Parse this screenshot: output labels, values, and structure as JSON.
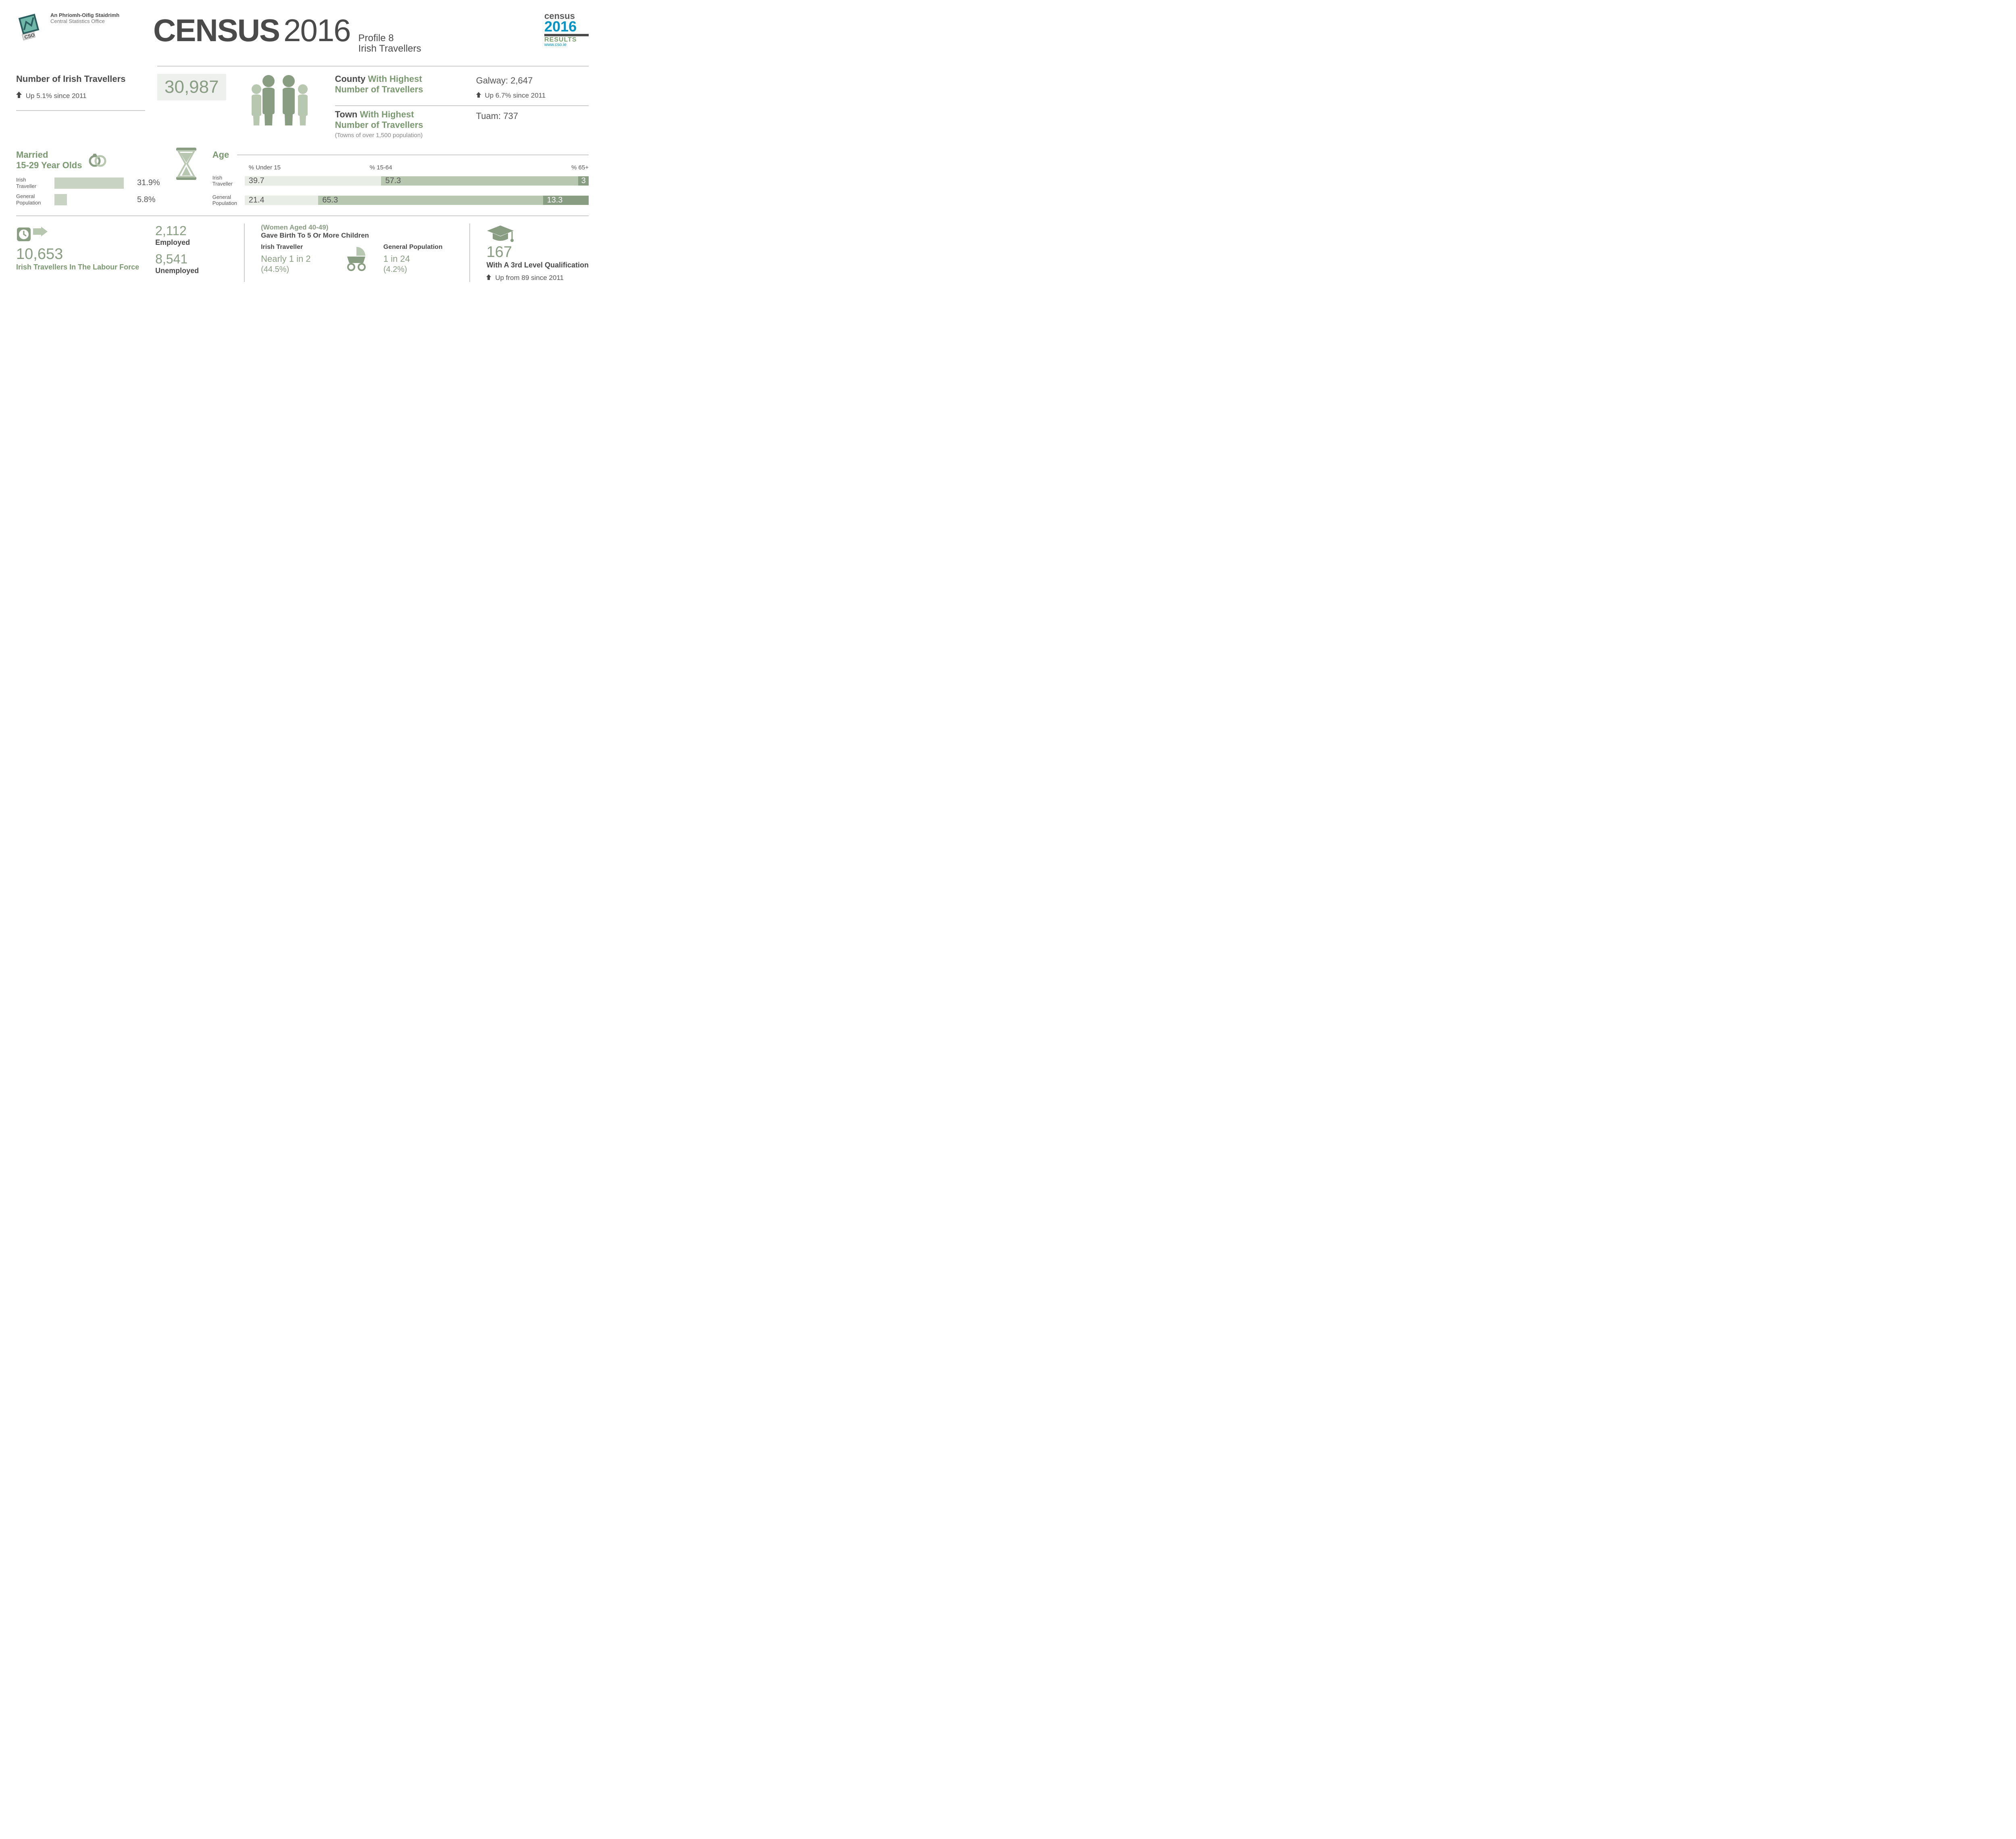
{
  "org": {
    "irish": "An Phríomh-Oifig Staidrimh",
    "english": "Central Statistics Office"
  },
  "title": {
    "word": "CENSUS",
    "year": "2016",
    "profile_line1": "Profile 8",
    "profile_line2": "Irish Travellers"
  },
  "badge": {
    "c": "census",
    "y": "2016",
    "r": "RESULTS",
    "u": "www.cso.ie"
  },
  "travellers": {
    "label": "Number of Irish Travellers",
    "value": "30,987",
    "meta": "Up 5.1% since 2011"
  },
  "county": {
    "label1": "County",
    "label2": "With Highest",
    "label3": "Number of  Travellers",
    "value": "Galway: 2,647",
    "meta": "Up 6.7% since 2011"
  },
  "town": {
    "label1": "Town",
    "label2": "With Highest",
    "label3": "Number of Travellers",
    "value": "Tuam: 737",
    "note": "(Towns of over 1,500 population)"
  },
  "married": {
    "title": "Married",
    "sub": "15-29 Year Olds",
    "rows": [
      {
        "label": "Irish Traveller",
        "val": "31.9%",
        "pct": 31.9
      },
      {
        "label": "General Population",
        "val": "5.8%",
        "pct": 5.8
      }
    ]
  },
  "age": {
    "title": "Age",
    "headers": [
      "% Under 15",
      "% 15-64",
      "% 65+"
    ],
    "rows": [
      {
        "label": "Irish Traveller",
        "segs": [
          {
            "v": "39.7",
            "w": 39.7
          },
          {
            "v": "57.3",
            "w": 57.3
          },
          {
            "v": "3",
            "w": 3
          }
        ]
      },
      {
        "label": "General Population",
        "segs": [
          {
            "v": "21.4",
            "w": 21.4
          },
          {
            "v": "65.3",
            "w": 65.3
          },
          {
            "v": "13.3",
            "w": 13.3
          }
        ]
      }
    ]
  },
  "labour": {
    "num": "10,653",
    "text": "Irish Travellers In The Labour Force"
  },
  "emp": {
    "employed_n": "2,112",
    "employed_l": "Employed",
    "unemp_n": "8,541",
    "unemp_l": "Unemployed"
  },
  "birth": {
    "top": "(Women Aged 40-49)",
    "title": "Gave Birth To 5 Or More Children",
    "cols": [
      {
        "h": "Irish Traveller",
        "v": "Nearly 1 in 2",
        "p": "(44.5%)"
      },
      {
        "h": "General Population",
        "v": "1 in 24",
        "p": "(4.2%)"
      }
    ]
  },
  "qual": {
    "num": "167",
    "text": "With A 3rd Level Qualification",
    "meta": "Up from 89 since 2011"
  },
  "colors": {
    "green": "#889d82",
    "greenText": "#7b9970",
    "light": "#e8ede5",
    "mid": "#b7c7b0"
  }
}
